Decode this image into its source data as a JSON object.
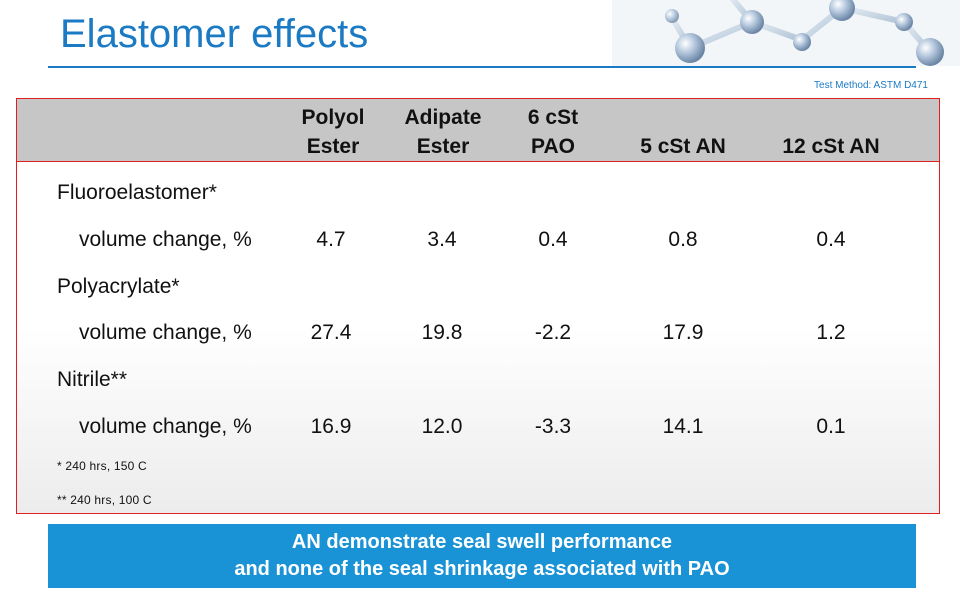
{
  "title": "Elastomer effects",
  "test_method": "Test Method: ASTM D471",
  "columns": [
    {
      "line1": "Polyol",
      "line2": "Ester"
    },
    {
      "line1": "Adipate",
      "line2": "Ester"
    },
    {
      "line1": "6 cSt",
      "line2": "PAO"
    },
    {
      "line1": "",
      "line2": "5 cSt AN"
    },
    {
      "line1": "",
      "line2": "12 cSt AN"
    }
  ],
  "sections": [
    {
      "name": "Fluoroelastomer*",
      "metric": "volume change, %",
      "values": [
        "4.7",
        "3.4",
        "0.4",
        "0.8",
        "0.4"
      ]
    },
    {
      "name": "Polyacrylate*",
      "metric": "volume change, %",
      "values": [
        "27.4",
        "19.8",
        "-2.2",
        "17.9",
        "1.2"
      ]
    },
    {
      "name": "Nitrile**",
      "metric": "volume change, %",
      "values": [
        "16.9",
        "12.0",
        "-3.3",
        "14.1",
        "0.1"
      ]
    }
  ],
  "footnotes": [
    "* 240 hrs, 150 C",
    "** 240 hrs, 100 C"
  ],
  "banner": {
    "line1": "AN demonstrate seal swell performance",
    "line2": "and none of the seal shrinkage associated with PAO"
  },
  "colors": {
    "title": "#1b7ac4",
    "panel_border": "#e02020",
    "header_bg": "#c6c6c6",
    "banner_bg": "#1a93d6"
  },
  "icons": [
    "molecule-illustration"
  ]
}
